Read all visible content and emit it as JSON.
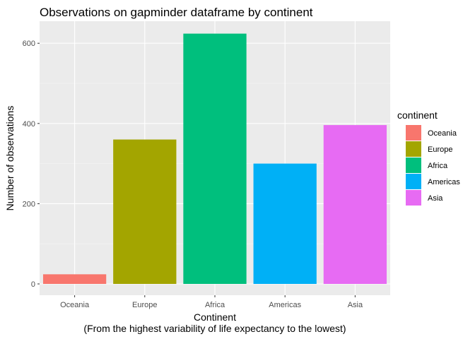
{
  "chart_data": {
    "type": "bar",
    "title": "Observations on gapminder dataframe by continent",
    "xlabel": "Continent",
    "xlabel_subtitle": "(From the highest variability of life expectancy to the lowest)",
    "ylabel": "Number of observations",
    "categories": [
      "Oceania",
      "Europe",
      "Africa",
      "Americas",
      "Asia"
    ],
    "values": [
      24,
      360,
      624,
      300,
      396
    ],
    "colors": [
      "#F8766D",
      "#A3A500",
      "#00BF7D",
      "#00B0F6",
      "#E76BF3"
    ],
    "ylim": [
      0,
      655
    ],
    "yticks": [
      0,
      200,
      400,
      600
    ],
    "grid": true,
    "legend": {
      "title": "continent",
      "position": "right",
      "entries": [
        "Oceania",
        "Europe",
        "Africa",
        "Americas",
        "Asia"
      ]
    }
  }
}
